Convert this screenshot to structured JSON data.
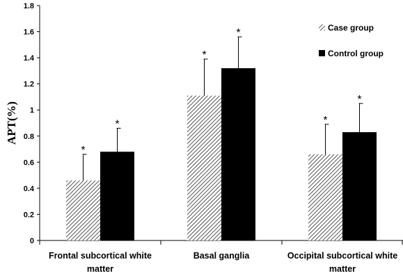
{
  "chart_data": {
    "type": "bar",
    "categories": [
      [
        "Frontal subcortical white",
        "matter"
      ],
      [
        "Basal ganglia"
      ],
      [
        "Occipital subcortical white",
        "matter"
      ]
    ],
    "series": [
      {
        "name": "Case group",
        "values": [
          0.46,
          1.11,
          0.66
        ],
        "errors": [
          0.2,
          0.28,
          0.23
        ],
        "pattern": "hatch",
        "color": "#555555",
        "significance": [
          "*",
          "*",
          "*"
        ]
      },
      {
        "name": "Control group",
        "values": [
          0.68,
          1.32,
          0.83
        ],
        "errors": [
          0.18,
          0.24,
          0.22
        ],
        "pattern": "solid",
        "color": "#000000",
        "significance": [
          "*",
          "*",
          "*"
        ]
      }
    ],
    "ylabel": "APT(%)",
    "xlabel": "",
    "ylim": [
      0,
      1.8
    ],
    "yticks": [
      "0",
      "0.2",
      "0.4",
      "0.6",
      "0.8",
      "1",
      "1.2",
      "1.4",
      "1.6",
      "1.8"
    ],
    "grid": false,
    "legend_position": "top-right"
  }
}
